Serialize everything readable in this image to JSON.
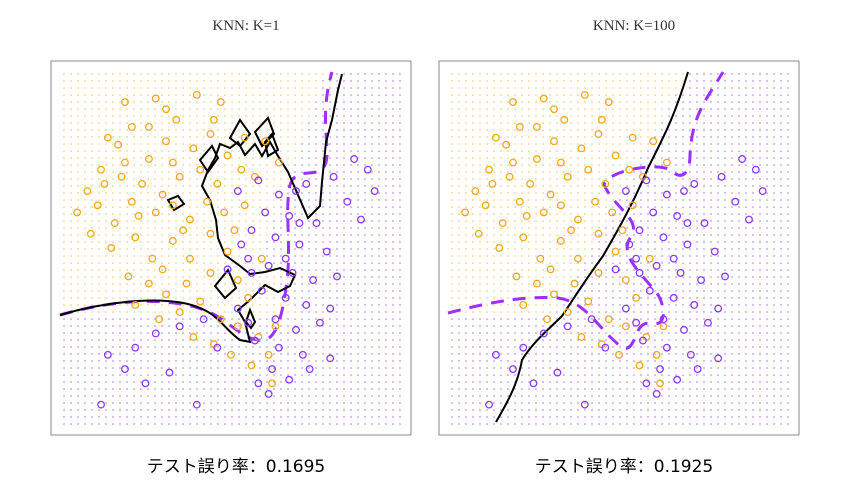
{
  "colors": {
    "class_orange": "#f0a820",
    "class_purple": "#8a3cf0",
    "bayes_boundary": "#9b30ff",
    "knn_boundary": "#000000",
    "frame": "#888888"
  },
  "chart_data": [
    {
      "type": "scatter",
      "title": "KNN: K=1",
      "caption": "テスト誤り率：0.1695",
      "legend": "none",
      "grid": false,
      "background": "class-colored dot grid showing predicted region",
      "lines": [
        {
          "name": "knn_boundary",
          "style": "solid"
        },
        {
          "name": "bayes_boundary",
          "style": "dashed"
        }
      ],
      "series": [
        {
          "class": "orange",
          "points": [
            [
              0.31,
              0.89
            ],
            [
              0.34,
              0.86
            ],
            [
              0.26,
              0.84
            ],
            [
              0.14,
              0.81
            ],
            [
              0.21,
              0.84
            ],
            [
              0.17,
              0.79
            ],
            [
              0.31,
              0.8
            ],
            [
              0.12,
              0.72
            ],
            [
              0.19,
              0.74
            ],
            [
              0.26,
              0.75
            ],
            [
              0.33,
              0.74
            ],
            [
              0.39,
              0.78
            ],
            [
              0.44,
              0.82
            ],
            [
              0.45,
              0.86
            ],
            [
              0.49,
              0.76
            ],
            [
              0.08,
              0.66
            ],
            [
              0.13,
              0.68
            ],
            [
              0.18,
              0.7
            ],
            [
              0.24,
              0.68
            ],
            [
              0.3,
              0.65
            ],
            [
              0.35,
              0.7
            ],
            [
              0.41,
              0.72
            ],
            [
              0.46,
              0.68
            ],
            [
              0.05,
              0.6
            ],
            [
              0.11,
              0.62
            ],
            [
              0.16,
              0.57
            ],
            [
              0.21,
              0.63
            ],
            [
              0.28,
              0.6
            ],
            [
              0.33,
              0.62
            ],
            [
              0.38,
              0.58
            ],
            [
              0.43,
              0.63
            ],
            [
              0.48,
              0.6
            ],
            [
              0.53,
              0.72
            ],
            [
              0.57,
              0.7
            ],
            [
              0.09,
              0.54
            ],
            [
              0.15,
              0.5
            ],
            [
              0.22,
              0.53
            ],
            [
              0.27,
              0.47
            ],
            [
              0.33,
              0.52
            ],
            [
              0.38,
              0.47
            ],
            [
              0.44,
              0.54
            ],
            [
              0.49,
              0.49
            ],
            [
              0.54,
              0.62
            ],
            [
              0.2,
              0.42
            ],
            [
              0.26,
              0.4
            ],
            [
              0.31,
              0.37
            ],
            [
              0.37,
              0.4
            ],
            [
              0.44,
              0.43
            ],
            [
              0.52,
              0.41
            ],
            [
              0.22,
              0.34
            ],
            [
              0.29,
              0.3
            ],
            [
              0.35,
              0.32
            ],
            [
              0.41,
              0.35
            ],
            [
              0.47,
              0.3
            ],
            [
              0.55,
              0.36
            ],
            [
              0.39,
              0.25
            ],
            [
              0.45,
              0.23
            ],
            [
              0.52,
              0.28
            ],
            [
              0.58,
              0.25
            ],
            [
              0.63,
              0.28
            ],
            [
              0.61,
              0.2
            ],
            [
              0.56,
              0.17
            ],
            [
              0.5,
              0.2
            ],
            [
              0.47,
              0.91
            ],
            [
              0.4,
              0.93
            ],
            [
              0.28,
              0.92
            ],
            [
              0.6,
              0.8
            ],
            [
              0.54,
              0.81
            ],
            [
              0.64,
              0.74
            ],
            [
              0.19,
              0.91
            ],
            [
              0.23,
              0.59
            ],
            [
              0.36,
              0.55
            ],
            [
              0.51,
              0.55
            ],
            [
              0.59,
              0.47
            ],
            [
              0.3,
              0.44
            ],
            [
              0.62,
              0.12
            ]
          ]
        },
        {
          "class": "purple",
          "points": [
            [
              0.86,
              0.75
            ],
            [
              0.9,
              0.72
            ],
            [
              0.8,
              0.7
            ],
            [
              0.72,
              0.68
            ],
            [
              0.64,
              0.65
            ],
            [
              0.6,
              0.6
            ],
            [
              0.67,
              0.59
            ],
            [
              0.75,
              0.57
            ],
            [
              0.84,
              0.63
            ],
            [
              0.92,
              0.66
            ],
            [
              0.56,
              0.55
            ],
            [
              0.63,
              0.53
            ],
            [
              0.7,
              0.51
            ],
            [
              0.78,
              0.49
            ],
            [
              0.55,
              0.47
            ],
            [
              0.61,
              0.45
            ],
            [
              0.68,
              0.43
            ],
            [
              0.74,
              0.41
            ],
            [
              0.59,
              0.38
            ],
            [
              0.66,
              0.36
            ],
            [
              0.72,
              0.34
            ],
            [
              0.79,
              0.33
            ],
            [
              0.63,
              0.3
            ],
            [
              0.69,
              0.27
            ],
            [
              0.76,
              0.29
            ],
            [
              0.57,
              0.24
            ],
            [
              0.64,
              0.22
            ],
            [
              0.71,
              0.2
            ],
            [
              0.62,
              0.16
            ],
            [
              0.67,
              0.13
            ],
            [
              0.73,
              0.16
            ],
            [
              0.79,
              0.19
            ],
            [
              0.52,
              0.33
            ],
            [
              0.55,
              0.29
            ],
            [
              0.46,
              0.22
            ],
            [
              0.42,
              0.3
            ],
            [
              0.35,
              0.28
            ],
            [
              0.28,
              0.26
            ],
            [
              0.22,
              0.22
            ],
            [
              0.14,
              0.2
            ],
            [
              0.19,
              0.16
            ],
            [
              0.25,
              0.12
            ],
            [
              0.32,
              0.15
            ],
            [
              0.12,
              0.06
            ],
            [
              0.4,
              0.06
            ],
            [
              0.56,
              0.43
            ],
            [
              0.66,
              0.47
            ],
            [
              0.49,
              0.44
            ],
            [
              0.53,
              0.51
            ],
            [
              0.7,
              0.57
            ],
            [
              0.88,
              0.58
            ],
            [
              0.61,
              0.09
            ],
            [
              0.58,
              0.12
            ],
            [
              0.81,
              0.42
            ],
            [
              0.69,
              0.66
            ],
            [
              0.58,
              0.69
            ],
            [
              0.52,
              0.66
            ]
          ]
        }
      ],
      "error_rate": 0.1695
    },
    {
      "type": "scatter",
      "title": "KNN: K=100",
      "caption": "テスト誤り率：0.1925",
      "legend": "none",
      "grid": false,
      "background": "class-colored dot grid showing predicted region",
      "lines": [
        {
          "name": "knn_boundary",
          "style": "solid"
        },
        {
          "name": "bayes_boundary",
          "style": "dashed"
        }
      ],
      "series": [
        {
          "class": "orange",
          "points": [
            [
              0.31,
              0.89
            ],
            [
              0.34,
              0.86
            ],
            [
              0.26,
              0.84
            ],
            [
              0.14,
              0.81
            ],
            [
              0.21,
              0.84
            ],
            [
              0.17,
              0.79
            ],
            [
              0.31,
              0.8
            ],
            [
              0.12,
              0.72
            ],
            [
              0.19,
              0.74
            ],
            [
              0.26,
              0.75
            ],
            [
              0.33,
              0.74
            ],
            [
              0.39,
              0.78
            ],
            [
              0.44,
              0.82
            ],
            [
              0.45,
              0.86
            ],
            [
              0.49,
              0.76
            ],
            [
              0.08,
              0.66
            ],
            [
              0.13,
              0.68
            ],
            [
              0.18,
              0.7
            ],
            [
              0.24,
              0.68
            ],
            [
              0.3,
              0.65
            ],
            [
              0.35,
              0.7
            ],
            [
              0.41,
              0.72
            ],
            [
              0.46,
              0.68
            ],
            [
              0.05,
              0.6
            ],
            [
              0.11,
              0.62
            ],
            [
              0.16,
              0.57
            ],
            [
              0.21,
              0.63
            ],
            [
              0.28,
              0.6
            ],
            [
              0.33,
              0.62
            ],
            [
              0.38,
              0.58
            ],
            [
              0.43,
              0.63
            ],
            [
              0.48,
              0.6
            ],
            [
              0.53,
              0.72
            ],
            [
              0.57,
              0.7
            ],
            [
              0.09,
              0.54
            ],
            [
              0.15,
              0.5
            ],
            [
              0.22,
              0.53
            ],
            [
              0.27,
              0.47
            ],
            [
              0.33,
              0.52
            ],
            [
              0.38,
              0.47
            ],
            [
              0.44,
              0.54
            ],
            [
              0.49,
              0.49
            ],
            [
              0.54,
              0.62
            ],
            [
              0.2,
              0.42
            ],
            [
              0.26,
              0.4
            ],
            [
              0.31,
              0.37
            ],
            [
              0.37,
              0.4
            ],
            [
              0.44,
              0.43
            ],
            [
              0.52,
              0.41
            ],
            [
              0.22,
              0.34
            ],
            [
              0.29,
              0.3
            ],
            [
              0.35,
              0.32
            ],
            [
              0.41,
              0.35
            ],
            [
              0.47,
              0.3
            ],
            [
              0.55,
              0.36
            ],
            [
              0.39,
              0.25
            ],
            [
              0.45,
              0.23
            ],
            [
              0.52,
              0.28
            ],
            [
              0.58,
              0.25
            ],
            [
              0.63,
              0.28
            ],
            [
              0.61,
              0.2
            ],
            [
              0.56,
              0.17
            ],
            [
              0.5,
              0.2
            ],
            [
              0.47,
              0.91
            ],
            [
              0.4,
              0.93
            ],
            [
              0.28,
              0.92
            ],
            [
              0.6,
              0.8
            ],
            [
              0.54,
              0.81
            ],
            [
              0.64,
              0.74
            ],
            [
              0.19,
              0.91
            ],
            [
              0.23,
              0.59
            ],
            [
              0.36,
              0.55
            ],
            [
              0.51,
              0.55
            ],
            [
              0.59,
              0.47
            ],
            [
              0.3,
              0.44
            ],
            [
              0.62,
              0.12
            ]
          ]
        },
        {
          "class": "purple",
          "points": [
            [
              0.86,
              0.75
            ],
            [
              0.9,
              0.72
            ],
            [
              0.8,
              0.7
            ],
            [
              0.72,
              0.68
            ],
            [
              0.64,
              0.65
            ],
            [
              0.6,
              0.6
            ],
            [
              0.67,
              0.59
            ],
            [
              0.75,
              0.57
            ],
            [
              0.84,
              0.63
            ],
            [
              0.92,
              0.66
            ],
            [
              0.56,
              0.55
            ],
            [
              0.63,
              0.53
            ],
            [
              0.7,
              0.51
            ],
            [
              0.78,
              0.49
            ],
            [
              0.55,
              0.47
            ],
            [
              0.61,
              0.45
            ],
            [
              0.68,
              0.43
            ],
            [
              0.74,
              0.41
            ],
            [
              0.59,
              0.38
            ],
            [
              0.66,
              0.36
            ],
            [
              0.72,
              0.34
            ],
            [
              0.79,
              0.33
            ],
            [
              0.63,
              0.3
            ],
            [
              0.69,
              0.27
            ],
            [
              0.76,
              0.29
            ],
            [
              0.57,
              0.24
            ],
            [
              0.64,
              0.22
            ],
            [
              0.71,
              0.2
            ],
            [
              0.62,
              0.16
            ],
            [
              0.67,
              0.13
            ],
            [
              0.73,
              0.16
            ],
            [
              0.79,
              0.19
            ],
            [
              0.52,
              0.33
            ],
            [
              0.55,
              0.29
            ],
            [
              0.46,
              0.22
            ],
            [
              0.42,
              0.3
            ],
            [
              0.35,
              0.28
            ],
            [
              0.28,
              0.26
            ],
            [
              0.22,
              0.22
            ],
            [
              0.14,
              0.2
            ],
            [
              0.19,
              0.16
            ],
            [
              0.25,
              0.12
            ],
            [
              0.32,
              0.15
            ],
            [
              0.12,
              0.06
            ],
            [
              0.4,
              0.06
            ],
            [
              0.56,
              0.43
            ],
            [
              0.66,
              0.47
            ],
            [
              0.49,
              0.44
            ],
            [
              0.53,
              0.51
            ],
            [
              0.7,
              0.57
            ],
            [
              0.88,
              0.58
            ],
            [
              0.61,
              0.09
            ],
            [
              0.58,
              0.12
            ],
            [
              0.81,
              0.42
            ],
            [
              0.69,
              0.66
            ],
            [
              0.58,
              0.69
            ],
            [
              0.52,
              0.66
            ]
          ]
        }
      ],
      "error_rate": 0.1925
    }
  ]
}
